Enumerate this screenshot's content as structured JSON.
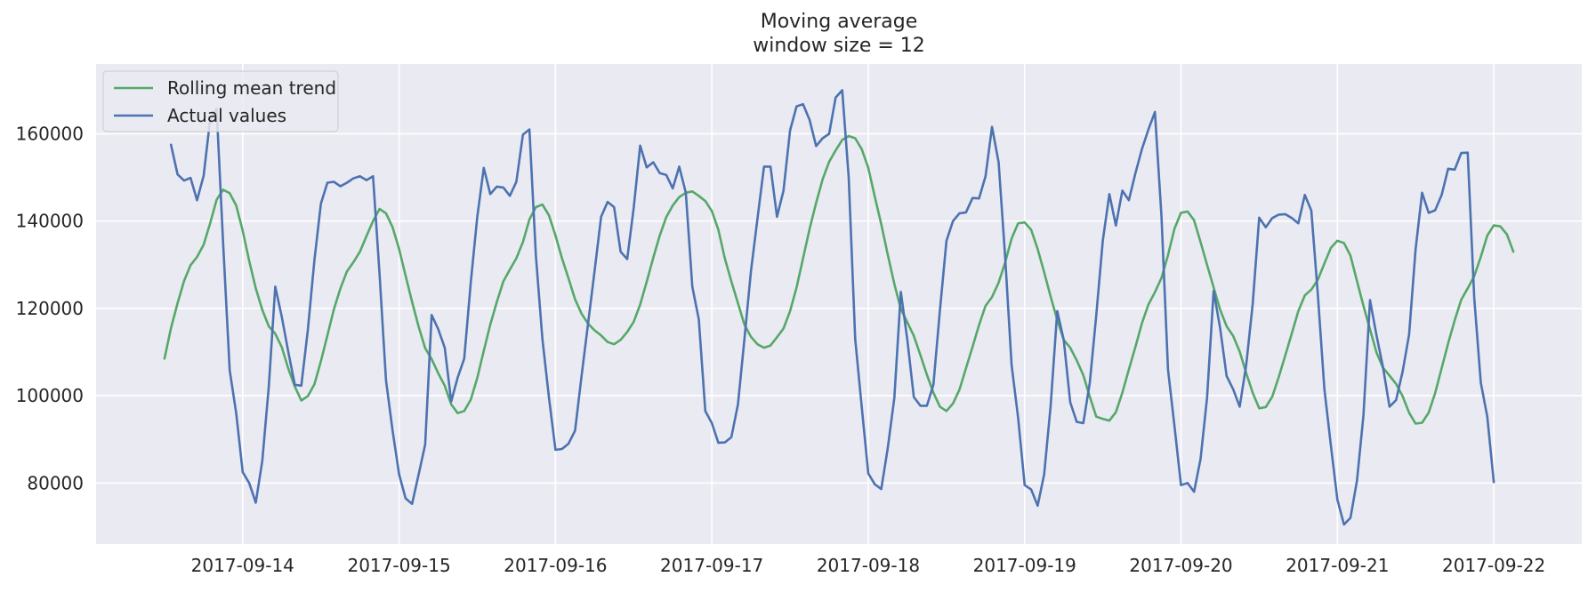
{
  "chart_data": {
    "type": "line",
    "title": "Moving average",
    "subtitle": "window size = 12",
    "xlabel": "",
    "ylabel": "",
    "x_start": "2017-09-13 12:00",
    "x_step_hours": 1,
    "x_ticks": [
      "2017-09-14",
      "2017-09-15",
      "2017-09-16",
      "2017-09-17",
      "2017-09-18",
      "2017-09-19",
      "2017-09-20",
      "2017-09-21",
      "2017-09-22"
    ],
    "y_ticks": [
      80000,
      100000,
      120000,
      140000,
      160000
    ],
    "ylim": [
      66000,
      176000
    ],
    "grid": true,
    "background": "#eaeaf2",
    "legend_position": "top-left",
    "series": [
      {
        "name": "Rolling mean trend",
        "color": "#55a868",
        "values": [
          108500,
          115500,
          121200,
          126300,
          129900,
          131800,
          134600,
          139500,
          144900,
          147200,
          146400,
          143600,
          137800,
          130900,
          124600,
          119700,
          115900,
          114200,
          111100,
          106200,
          102100,
          98900,
          99900,
          102600,
          107900,
          113800,
          119800,
          124600,
          128500,
          130600,
          133000,
          136600,
          140000,
          142800,
          141800,
          138600,
          133600,
          127500,
          121500,
          115800,
          110900,
          108400,
          105200,
          102300,
          98000,
          96000,
          96500,
          99100,
          104100,
          110300,
          116300,
          121500,
          126200,
          128900,
          131500,
          135200,
          140400,
          143200,
          143800,
          141300,
          136700,
          131500,
          126900,
          122100,
          118800,
          116500,
          115000,
          113800,
          112300,
          111800,
          112800,
          114600,
          116900,
          120900,
          126100,
          131600,
          136700,
          140900,
          143600,
          145500,
          146500,
          146800,
          145800,
          144600,
          142300,
          138000,
          131400,
          126200,
          121200,
          116300,
          113500,
          111800,
          111000,
          111500,
          113400,
          115400,
          119400,
          124800,
          131500,
          138200,
          144200,
          149600,
          153600,
          156200,
          158600,
          159500,
          159000,
          156500,
          152200,
          145600,
          139300,
          132300,
          125600,
          119900,
          116800,
          113700,
          109300,
          104800,
          100700,
          97500,
          96500,
          98200,
          101400,
          106300,
          111200,
          116200,
          120600,
          122600,
          125900,
          130500,
          136000,
          139500,
          139700,
          138000,
          133600,
          128300,
          122700,
          117400,
          112800,
          111000,
          108100,
          104700,
          99800,
          95200,
          94700,
          94300,
          96200,
          100700,
          106000,
          111200,
          116600,
          120900,
          123700,
          127000,
          132200,
          138300,
          141900,
          142200,
          140200,
          135200,
          130000,
          124800,
          119700,
          115900,
          113700,
          110100,
          105200,
          100700,
          97100,
          97400,
          99800,
          104300,
          109200,
          114300,
          119400,
          123000,
          124300,
          126600,
          130300,
          133900,
          135500,
          135000,
          132100,
          126300,
          120600,
          115200,
          109900,
          106400,
          104600,
          102700,
          99900,
          96100,
          93600,
          93800,
          96100,
          100600,
          106300,
          112000,
          117300,
          122000,
          124600,
          127400,
          131800,
          136700,
          139000,
          138800,
          137000,
          133000
        ]
      },
      {
        "name": "Actual values",
        "color": "#4c72b0",
        "values": [
          null,
          157500,
          150700,
          149300,
          149900,
          144800,
          150400,
          163300,
          165800,
          135000,
          105800,
          96000,
          82500,
          80000,
          75500,
          85000,
          102000,
          125000,
          118000,
          110000,
          102500,
          102300,
          115000,
          131000,
          144000,
          148800,
          149000,
          148000,
          148800,
          149800,
          150300,
          149400,
          150300,
          128000,
          103500,
          92000,
          82000,
          76500,
          75200,
          82000,
          88800,
          118500,
          115300,
          111000,
          98700,
          104200,
          108500,
          126000,
          141000,
          152200,
          146200,
          147900,
          147700,
          145800,
          149000,
          159800,
          161000,
          132000,
          113000,
          99500,
          87600,
          87800,
          89000,
          92000,
          104500,
          116500,
          128500,
          141000,
          144400,
          143200,
          133000,
          131300,
          143000,
          157300,
          152300,
          153500,
          151000,
          150600,
          147500,
          152500,
          146500,
          125000,
          117500,
          96500,
          93700,
          89200,
          89300,
          90500,
          98000,
          113000,
          128500,
          140500,
          152500,
          152500,
          141000,
          147000,
          160800,
          166300,
          166800,
          163200,
          157200,
          159000,
          160000,
          168300,
          170000,
          150000,
          113000,
          97500,
          82200,
          79700,
          78600,
          88000,
          99500,
          123800,
          112800,
          99700,
          97700,
          97700,
          102500,
          119500,
          135500,
          140000,
          141800,
          142000,
          145300,
          145200,
          150300,
          161600,
          153500,
          132000,
          107000,
          95000,
          79500,
          78500,
          74800,
          82000,
          97700,
          119400,
          112800,
          98500,
          94000,
          93700,
          103000,
          118500,
          135500,
          146200,
          139000,
          147000,
          144800,
          151000,
          156500,
          161000,
          165000,
          141000,
          106000,
          93000,
          79500,
          80000,
          78000,
          85500,
          99500,
          124000,
          115500,
          104500,
          101500,
          97500,
          107000,
          121000,
          140800,
          138600,
          140700,
          141500,
          141600,
          140700,
          139500,
          146000,
          142400,
          123000,
          101500,
          88600,
          76200,
          70500,
          72000,
          80500,
          95500,
          121900,
          113800,
          106500,
          97500,
          99000,
          105500,
          114000,
          133500,
          146500,
          141900,
          142500,
          146000,
          152000,
          151800,
          155600,
          155700,
          122500,
          103000,
          95200,
          80200
        ]
      }
    ]
  }
}
